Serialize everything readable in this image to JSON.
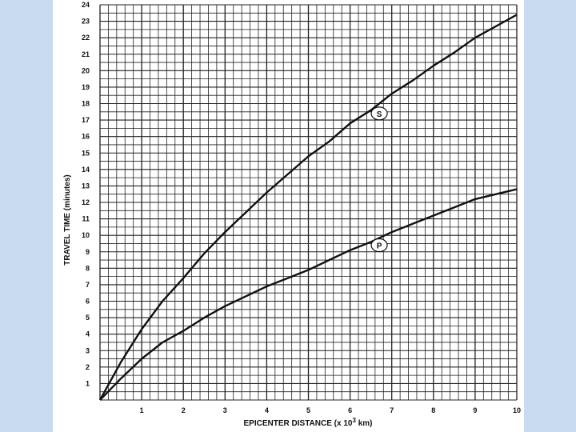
{
  "chart_data": {
    "type": "line",
    "xlabel": "EPICENTER DISTANCE (x 10",
    "xlabel_sup": "3",
    "xlabel_end": " km)",
    "ylabel": "TRAVEL TIME (minutes)",
    "xlim": [
      0,
      10
    ],
    "ylim": [
      0,
      24
    ],
    "x_ticks": [
      "1",
      "2",
      "3",
      "4",
      "5",
      "6",
      "7",
      "8",
      "9",
      "10"
    ],
    "y_ticks": [
      "1",
      "2",
      "3",
      "4",
      "5",
      "6",
      "7",
      "8",
      "9",
      "10",
      "11",
      "12",
      "13",
      "14",
      "15",
      "16",
      "17",
      "18",
      "19",
      "20",
      "21",
      "22",
      "23",
      "24"
    ],
    "grid": true,
    "series": [
      {
        "name": "S",
        "x": [
          0,
          0.5,
          1,
          1.5,
          2,
          2.5,
          3,
          3.5,
          4,
          4.5,
          5,
          5.5,
          6,
          6.5,
          7,
          7.5,
          8,
          8.5,
          9,
          9.5,
          10
        ],
        "y": [
          0,
          2.3,
          4.3,
          6.0,
          7.4,
          8.9,
          10.2,
          11.4,
          12.6,
          13.7,
          14.8,
          15.7,
          16.8,
          17.6,
          18.6,
          19.4,
          20.3,
          21.1,
          22.0,
          22.7,
          23.4
        ]
      },
      {
        "name": "P",
        "x": [
          0,
          0.5,
          1,
          1.5,
          2,
          2.5,
          3,
          3.5,
          4,
          4.5,
          5,
          5.5,
          6,
          6.5,
          7,
          7.5,
          8,
          8.5,
          9,
          9.5,
          10
        ],
        "y": [
          0,
          1.3,
          2.5,
          3.5,
          4.2,
          5.0,
          5.7,
          6.3,
          6.9,
          7.4,
          7.9,
          8.5,
          9.1,
          9.6,
          10.2,
          10.7,
          11.2,
          11.7,
          12.2,
          12.5,
          12.8
        ]
      }
    ],
    "annotations": [
      {
        "text": "S",
        "x": 6.7,
        "y": 17.4
      },
      {
        "text": "P",
        "x": 6.7,
        "y": 9.4
      }
    ],
    "colors": {
      "curve": "#111111",
      "grid": "#222222",
      "panel": "#c9dcef"
    }
  }
}
